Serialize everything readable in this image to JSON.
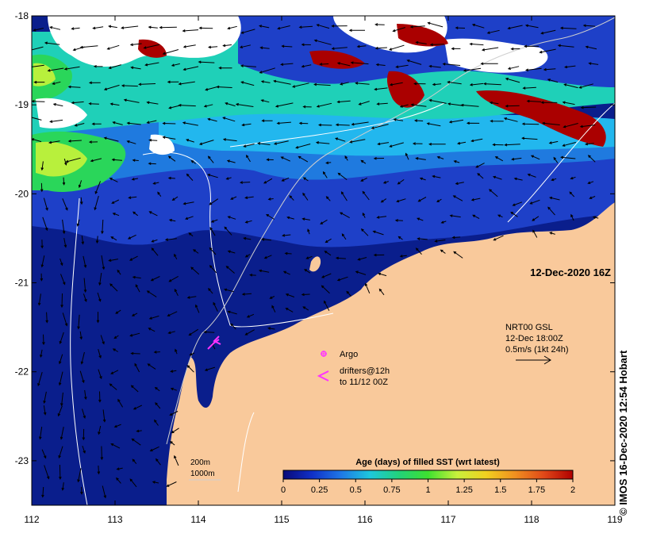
{
  "map": {
    "lon_ticks": [
      "112",
      "113",
      "114",
      "115",
      "116",
      "117",
      "118",
      "119"
    ],
    "lat_ticks": [
      "-18",
      "-19",
      "-20",
      "-21",
      "-22",
      "-23"
    ],
    "lon_range": [
      112,
      119
    ],
    "lat_range": [
      -18,
      -23.5
    ],
    "date_label": "12-Dec-2020 16Z",
    "credit": "© IMOS 16-Dec-2020 12:54 Hobart",
    "colors": {
      "land": "#f9c99b",
      "cloud": "#ffffff",
      "ocean_deep": "#0a1e8c",
      "ocean_mid": "#1e40c8",
      "ocean_light": "#1f7adf",
      "cyan": "#22b7ee",
      "teal": "#1fd0b8",
      "green": "#2ad65a",
      "lime": "#b8f03c",
      "darkred": "#aa0000"
    }
  },
  "velocity_legend": {
    "line1": "NRT00 GSL",
    "line2": "12-Dec 18:00Z",
    "line3": "0.5m/s (1kt 24h)"
  },
  "symbols_legend": {
    "argo": "Argo",
    "drifters_line1": "drifters@12h",
    "drifters_line2": "to 11/12 00Z"
  },
  "contour_legend": {
    "c200": "200m",
    "c1000": "1000m"
  },
  "colorbar": {
    "title": "Age (days) of filled SST (wrt latest)",
    "tick_labels": [
      "0",
      "0.25",
      "0.5",
      "0.75",
      "1",
      "1.25",
      "1.5",
      "1.75",
      "2"
    ],
    "range": [
      0,
      2
    ],
    "colors": [
      "#0a0a78",
      "#1030c8",
      "#1f78e6",
      "#1ec8dc",
      "#22d27a",
      "#3ee030",
      "#c8f03c",
      "#f0d020",
      "#f09020",
      "#e04818",
      "#b00000"
    ]
  }
}
